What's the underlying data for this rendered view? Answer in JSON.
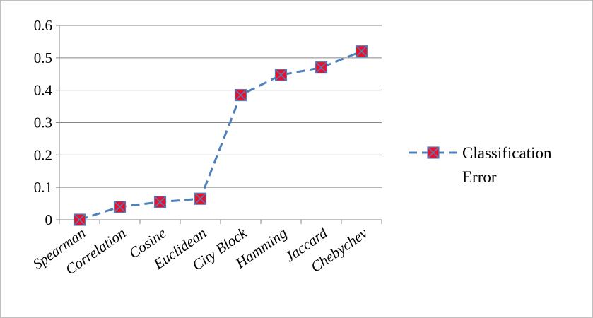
{
  "chart_data": {
    "type": "line",
    "categories": [
      "Spearman",
      "Correlation",
      "Cosine",
      "Euclidean",
      "City Block",
      "Hamming",
      "Jaccard",
      "Chebychev"
    ],
    "series": [
      {
        "name": "Classification Error",
        "values": [
          0.0,
          0.04,
          0.055,
          0.065,
          0.385,
          0.447,
          0.47,
          0.52
        ],
        "line_color": "#4f81bd",
        "line_style": "dashed",
        "marker": "square-x",
        "marker_fill": "#e8112d",
        "marker_stroke": "#4f81bd"
      }
    ],
    "ylim": [
      0,
      0.6
    ],
    "yticks": [
      "0",
      "0.1",
      "0.2",
      "0.3",
      "0.4",
      "0.5",
      "0.6"
    ],
    "grid": "horizontal",
    "legend": {
      "position": "right",
      "lines": [
        "Classification",
        "Error"
      ]
    },
    "title": "",
    "xlabel": "",
    "ylabel": ""
  }
}
